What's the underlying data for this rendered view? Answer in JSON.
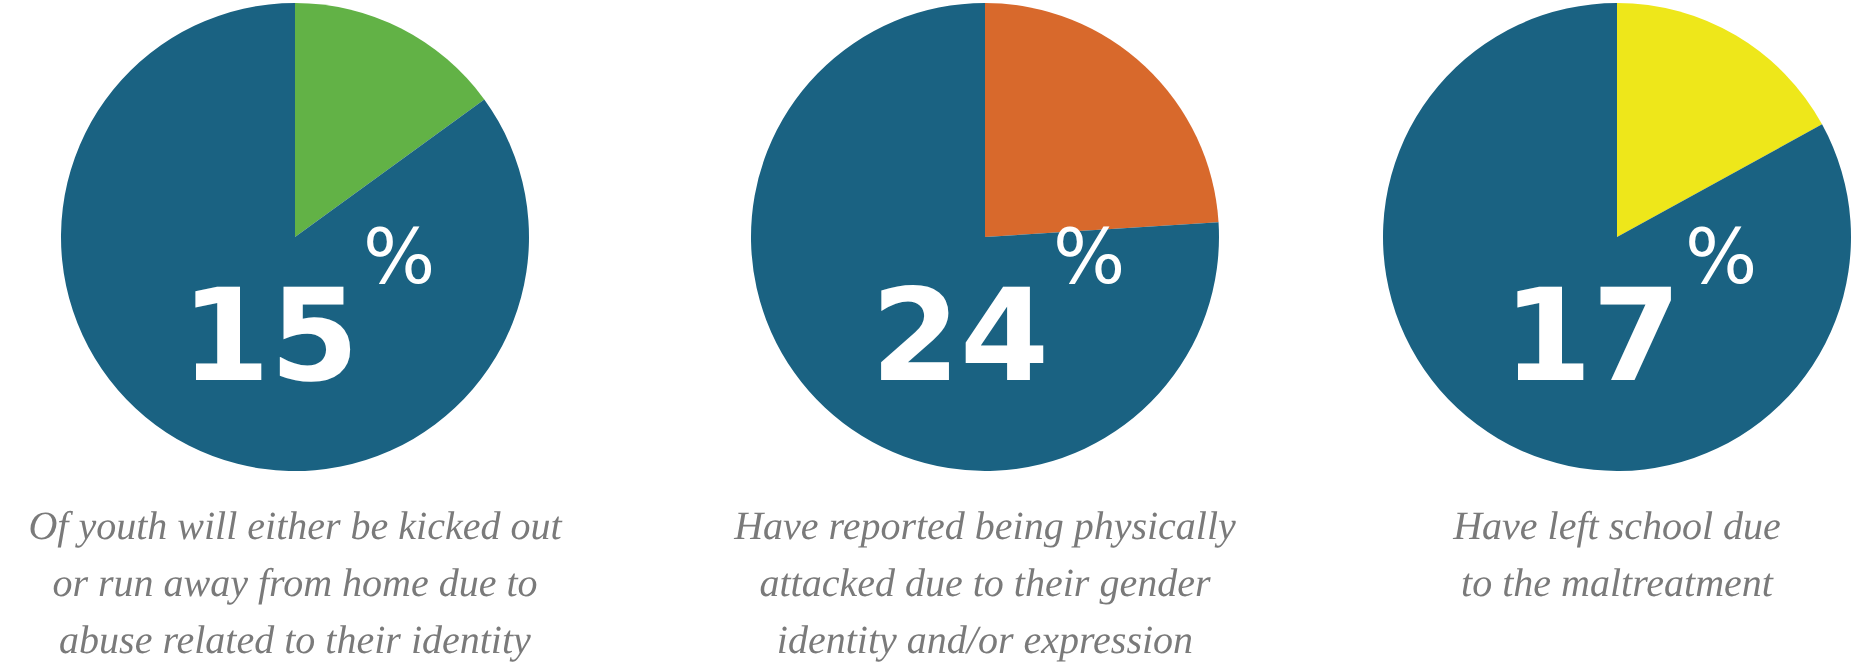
{
  "chart_data": [
    {
      "type": "pie",
      "categories": [
        null,
        null
      ],
      "values": [
        15,
        85
      ],
      "colors": [
        "#62b246",
        "#1a6282"
      ],
      "annotations": [
        "15%",
        "Of youth will either be kicked out\nor run away from home due to\nabuse related to their identity"
      ]
    },
    {
      "type": "pie",
      "categories": [
        null,
        null
      ],
      "values": [
        24,
        76
      ],
      "colors": [
        "#d8692c",
        "#1a6282"
      ],
      "annotations": [
        "24%",
        "Have reported being physically\nattacked due to their gender\nidentity and/or expression"
      ]
    },
    {
      "type": "pie",
      "categories": [
        null,
        null
      ],
      "values": [
        17,
        83
      ],
      "colors": [
        "#eee71a",
        "#1a6282"
      ],
      "annotations": [
        "17%",
        "Have left school due\nto the maltreatment"
      ]
    }
  ]
}
